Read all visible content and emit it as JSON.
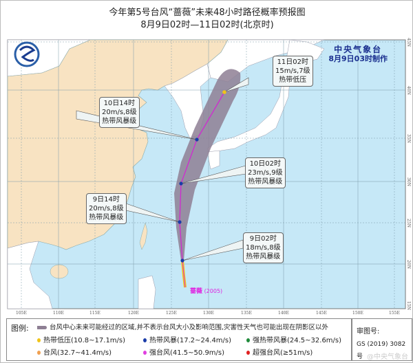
{
  "title": "今年第5号台风“蔷薇”未来48小时路径概率预报图",
  "subtitle": "8月9日02时—11日02时(北京时)",
  "organization": {
    "name": "中央气象台",
    "issued": "8月9日03时制作"
  },
  "logo": "cma-logo",
  "storm_label": {
    "name": "蔷薇",
    "code": "(2005)"
  },
  "longitude_ticks": [
    "105E",
    "110E",
    "115E",
    "120E",
    "125E",
    "130E",
    "135E",
    "140E",
    "145E",
    "150E",
    "155E"
  ],
  "latitude_ticks": [
    "45N",
    "40N",
    "35N",
    "30N",
    "25N",
    "20N",
    "15N"
  ],
  "forecast_points": [
    {
      "time": "9日02时",
      "wind": "18m/s,8级",
      "category": "热带风暴级",
      "lon": 125.7,
      "lat": 20.2,
      "color": "#1a3ca8"
    },
    {
      "time": "9日14时",
      "wind": "20m/s,8级",
      "category": "热带风暴级",
      "lon": 125.4,
      "lat": 25.0,
      "color": "#1a3ca8"
    },
    {
      "time": "10日02时",
      "wind": "23m/s,9级",
      "category": "热带风暴级",
      "lon": 125.6,
      "lat": 29.6,
      "color": "#1a3ca8"
    },
    {
      "time": "10日14时",
      "wind": "20m/s,8级",
      "category": "热带风暴级",
      "lon": 127.8,
      "lat": 34.8,
      "color": "#1a3ca8"
    },
    {
      "time": "11日02时",
      "wind": "15m/s,7级",
      "category": "热带低压",
      "lon": 131.5,
      "lat": 40.4,
      "color": "#f0c419"
    }
  ],
  "legend": {
    "heading": "图例:",
    "area_note": "台风中心未来可能经过的区域,并不表示台风大小及影响范围,灾害性天气也可能出现在阴影区以外",
    "items": [
      {
        "label": "热带低压(10.8~17.1m/s)",
        "color": "#f0c419"
      },
      {
        "label": "热带风暴(17.2~24.4m/s)",
        "color": "#1a3ca8"
      },
      {
        "label": "强热带风暴(24.5~32.6m/s)",
        "color": "#1f8a3a"
      },
      {
        "label": "台风(32.7~41.4m/s)",
        "color": "#f0a050"
      },
      {
        "label": "强台风(41.5~50.9m/s)",
        "color": "#e040e0"
      },
      {
        "label": "超强台风(≥51m/s)",
        "color": "#e02020"
      }
    ]
  },
  "approval": {
    "label": "审图号:",
    "number": "GS (2019) 3082号"
  },
  "watermark": "@中央气象台",
  "colors": {
    "sea": "#c6e8f7",
    "china": "#f8e3c2",
    "other_land": "#ffffff",
    "cone": "#8e7f94",
    "track": "#d02ad0"
  }
}
